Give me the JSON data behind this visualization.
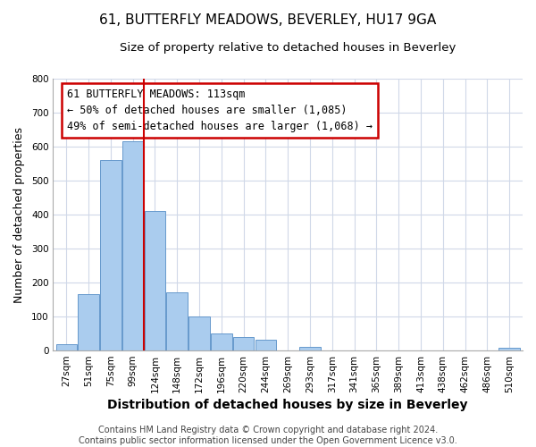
{
  "title": "61, BUTTERFLY MEADOWS, BEVERLEY, HU17 9GA",
  "subtitle": "Size of property relative to detached houses in Beverley",
  "xlabel": "Distribution of detached houses by size in Beverley",
  "ylabel": "Number of detached properties",
  "bar_labels": [
    "27sqm",
    "51sqm",
    "75sqm",
    "99sqm",
    "124sqm",
    "148sqm",
    "172sqm",
    "196sqm",
    "220sqm",
    "244sqm",
    "269sqm",
    "293sqm",
    "317sqm",
    "341sqm",
    "365sqm",
    "389sqm",
    "413sqm",
    "438sqm",
    "462sqm",
    "486sqm",
    "510sqm"
  ],
  "bar_values": [
    18,
    165,
    560,
    615,
    410,
    170,
    100,
    50,
    40,
    33,
    0,
    12,
    0,
    0,
    0,
    0,
    0,
    0,
    0,
    0,
    8
  ],
  "bar_color": "#aaccee",
  "bar_edge_color": "#6699cc",
  "annotation_box_text_line1": "61 BUTTERFLY MEADOWS: 113sqm",
  "annotation_box_text_line2": "← 50% of detached houses are smaller (1,085)",
  "annotation_box_text_line3": "49% of semi-detached houses are larger (1,068) →",
  "annotation_box_color": "#ffffff",
  "annotation_box_edge_color": "#cc0000",
  "vline_color": "#cc0000",
  "vline_x": 3.5,
  "ylim": [
    0,
    800
  ],
  "yticks": [
    0,
    100,
    200,
    300,
    400,
    500,
    600,
    700,
    800
  ],
  "footer_text": "Contains HM Land Registry data © Crown copyright and database right 2024.\nContains public sector information licensed under the Open Government Licence v3.0.",
  "background_color": "#ffffff",
  "grid_color": "#d0d8e8",
  "title_fontsize": 11,
  "subtitle_fontsize": 9.5,
  "xlabel_fontsize": 10,
  "ylabel_fontsize": 9,
  "tick_fontsize": 7.5,
  "annotation_fontsize": 8.5,
  "footer_fontsize": 7
}
